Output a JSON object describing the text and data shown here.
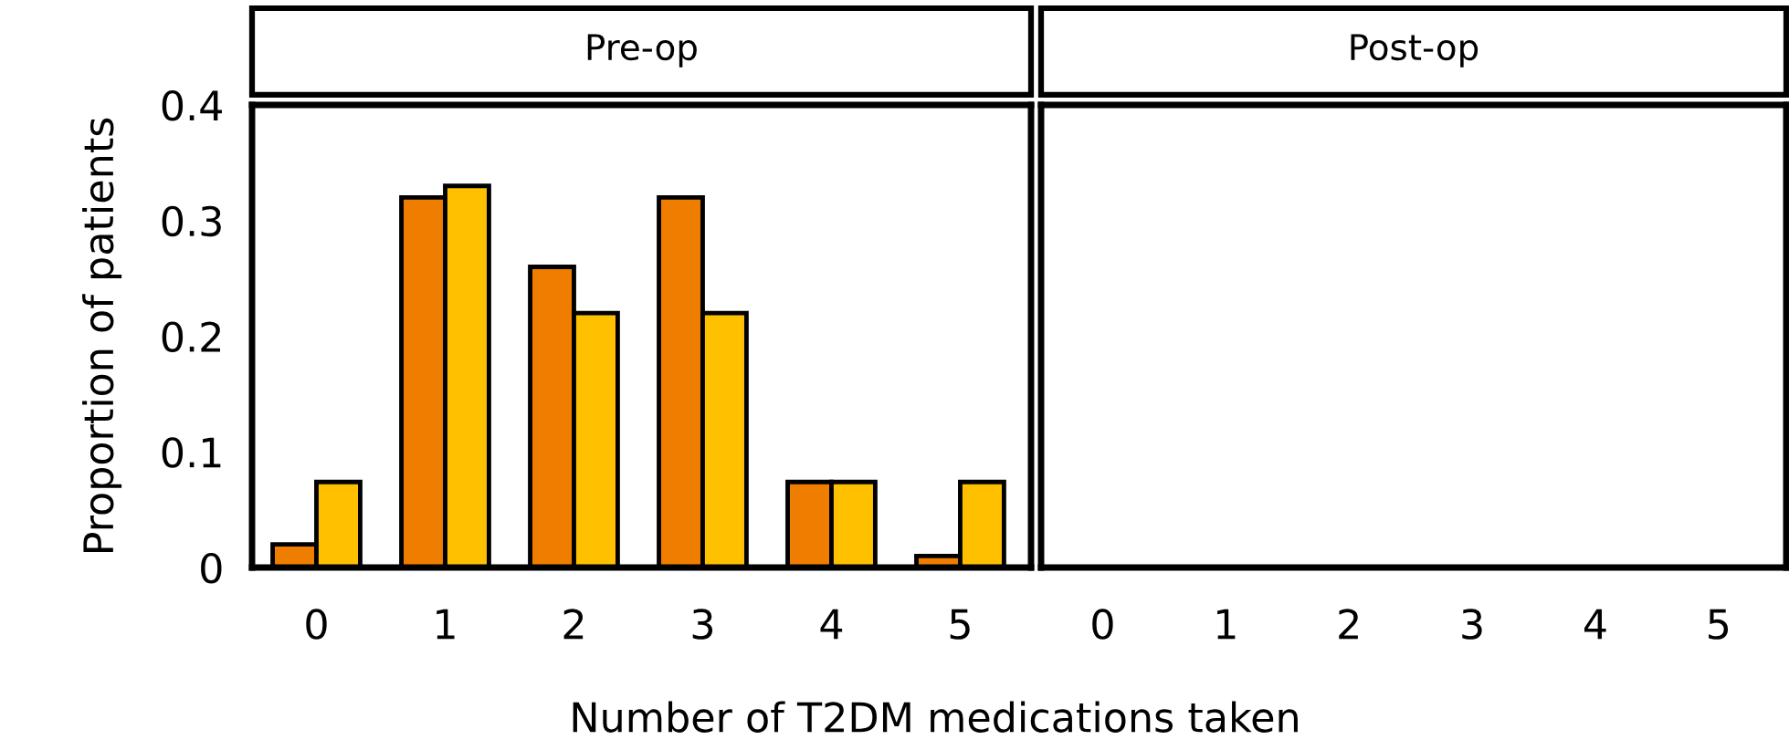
{
  "chart_data": [
    {
      "type": "bar",
      "title": "Pre-op",
      "ylabel": "Proportion of patients",
      "xlabel": "Number of T2DM medications taken",
      "categories": [
        "0",
        "1",
        "2",
        "3",
        "4",
        "5"
      ],
      "ylim": [
        0,
        0.4
      ],
      "yticks": [
        {
          "value": 0,
          "label": "0"
        },
        0.1,
        0.2,
        0.3,
        0.4
      ],
      "grid": false,
      "series": [
        {
          "color": "#ef7d00",
          "values": [
            0.02,
            0.32,
            0.26,
            0.32,
            0.074,
            0.01
          ]
        },
        {
          "color": "#ffc000",
          "values": [
            0.074,
            0.33,
            0.22,
            0.22,
            0.074,
            0.074
          ]
        }
      ]
    },
    {
      "type": "bar",
      "title": "Post-op",
      "categories": [
        "0",
        "1",
        "2",
        "3",
        "4",
        "5"
      ],
      "ylim": [
        0,
        0.4
      ],
      "tick_labels": "x",
      "grid": false,
      "series": [
        {
          "color": "#ef7d00",
          "values": [
            null,
            null,
            null,
            null,
            null,
            null
          ]
        },
        {
          "color": "#ffc000",
          "values": [
            null,
            null,
            null,
            null,
            null,
            null
          ]
        }
      ]
    }
  ]
}
